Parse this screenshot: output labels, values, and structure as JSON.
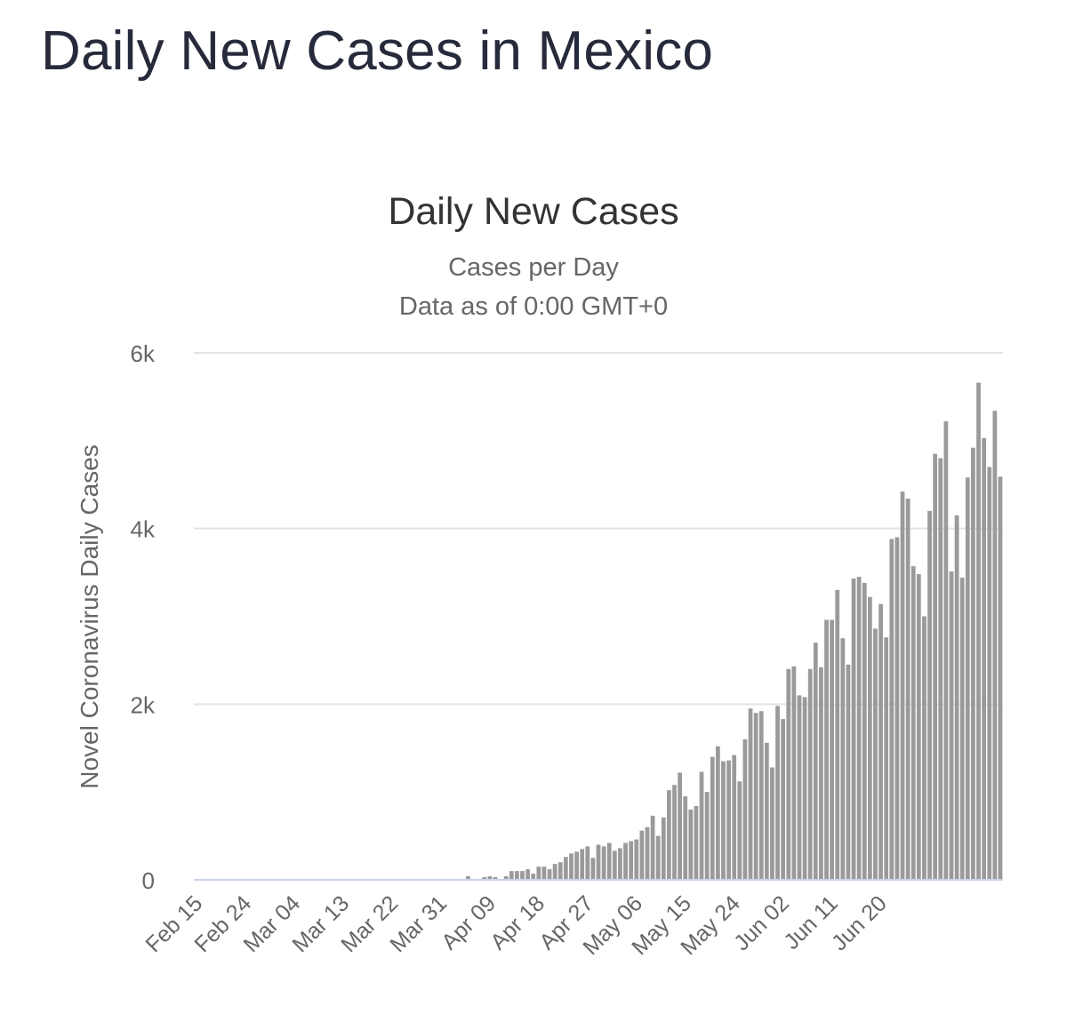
{
  "page": {
    "heading": "Daily New Cases in Mexico"
  },
  "colors": {
    "bar": "#9a9a9a",
    "grid": "#e3e3e3",
    "baseline": "#c8d3e6",
    "heading": "#262a3b",
    "chart_title": "#333333",
    "subtitle": "#666666",
    "axis_text": "#666666"
  },
  "chart_data": {
    "type": "bar",
    "title": "Daily New Cases",
    "subtitle_lines": [
      "Cases per Day",
      "Data as of 0:00 GMT+0"
    ],
    "xlabel": "",
    "ylabel": "Novel Coronavirus Daily Cases",
    "ylim": [
      0,
      6000
    ],
    "yticks": [
      0,
      2000,
      4000,
      6000
    ],
    "ytick_labels": [
      "0",
      "2k",
      "4k",
      "6k"
    ],
    "grid": true,
    "legend": "none",
    "x_start": "Feb 15",
    "x_tick_labels": [
      "Feb 15",
      "Feb 24",
      "Mar 04",
      "Mar 13",
      "Mar 22",
      "Mar 31",
      "Apr 09",
      "Apr 18",
      "Apr 27",
      "May 06",
      "May 15",
      "May 24",
      "Jun 02",
      "Jun 11",
      "Jun 20"
    ],
    "x_tick_every": 9,
    "series": [
      {
        "values": [
          0,
          0,
          0,
          0,
          0,
          0,
          0,
          0,
          0,
          0,
          0,
          0,
          0,
          0,
          0,
          0,
          0,
          0,
          0,
          0,
          0,
          0,
          0,
          0,
          0,
          0,
          0,
          0,
          0,
          0,
          0,
          0,
          0,
          0,
          0,
          0,
          0,
          0,
          0,
          0,
          0,
          0,
          0,
          0,
          0,
          0,
          0,
          0,
          0,
          0,
          40,
          0,
          0,
          30,
          40,
          30,
          10,
          40,
          100,
          100,
          100,
          120,
          70,
          150,
          150,
          120,
          180,
          200,
          260,
          300,
          320,
          350,
          380,
          250,
          400,
          380,
          420,
          330,
          360,
          420,
          440,
          460,
          560,
          600,
          730,
          500,
          710,
          1020,
          1080,
          1220,
          950,
          800,
          840,
          1230,
          1000,
          1400,
          1520,
          1350,
          1360,
          1420,
          1120,
          1600,
          1950,
          1900,
          1920,
          1560,
          1280,
          1980,
          1830,
          2400,
          2430,
          2100,
          2080,
          2400,
          2700,
          2420,
          2960,
          2960,
          3300,
          2750,
          2450,
          3430,
          3450,
          3380,
          3220,
          2860,
          3140,
          2760,
          3880,
          3900,
          4420,
          4340,
          3570,
          3480,
          3000,
          4200,
          4850,
          4800,
          5220,
          3510,
          4150,
          3440,
          4580,
          4920,
          5660,
          5030,
          4700,
          5340,
          4590
        ]
      }
    ]
  }
}
